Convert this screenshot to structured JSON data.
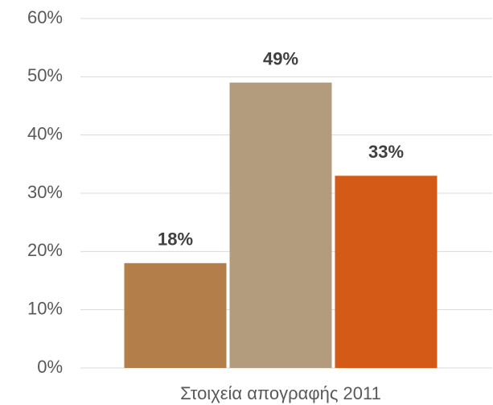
{
  "chart_data": {
    "type": "bar",
    "categories": [
      "Στοιχεία απογραφής 2011"
    ],
    "series": [
      {
        "color": "#b37e4a",
        "values": [
          18
        ],
        "value_labels": [
          "18%"
        ]
      },
      {
        "color": "#b39c7d",
        "values": [
          49
        ],
        "value_labels": [
          "49%"
        ]
      },
      {
        "color": "#d45a17",
        "values": [
          33
        ],
        "value_labels": [
          "33%"
        ]
      }
    ],
    "ylim": [
      0,
      60
    ],
    "yticks": [
      {
        "value": 0,
        "label": "0%"
      },
      {
        "value": 10,
        "label": "10%"
      },
      {
        "value": 20,
        "label": "20%"
      },
      {
        "value": 30,
        "label": "30%"
      },
      {
        "value": 40,
        "label": "40%"
      },
      {
        "value": 50,
        "label": "50%"
      },
      {
        "value": 60,
        "label": "60%"
      }
    ],
    "grid": true
  }
}
